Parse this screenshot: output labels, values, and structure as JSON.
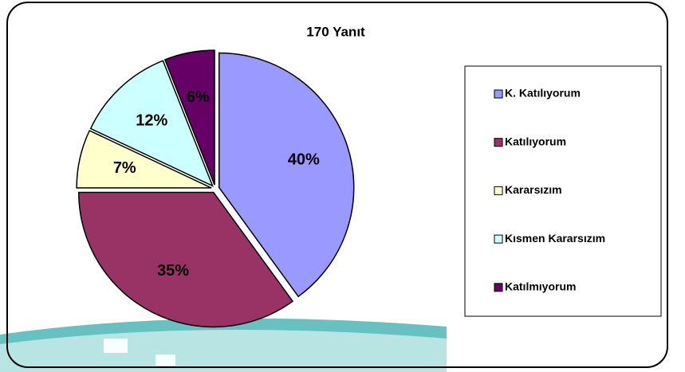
{
  "chart_data": {
    "type": "pie",
    "title": "170 Yanıt",
    "categories": [
      "K. Katılıyorum",
      "Katılıyorum",
      "Kararsızım",
      "Kısmen Kararsızım",
      "Katılmıyorum"
    ],
    "values": [
      40,
      35,
      7,
      12,
      6
    ],
    "value_labels": [
      "40%",
      "35%",
      "7%",
      "12%",
      "6%"
    ],
    "colors": [
      "#9999ff",
      "#993366",
      "#ffffcc",
      "#ccffff",
      "#660066"
    ],
    "legend": "right"
  }
}
